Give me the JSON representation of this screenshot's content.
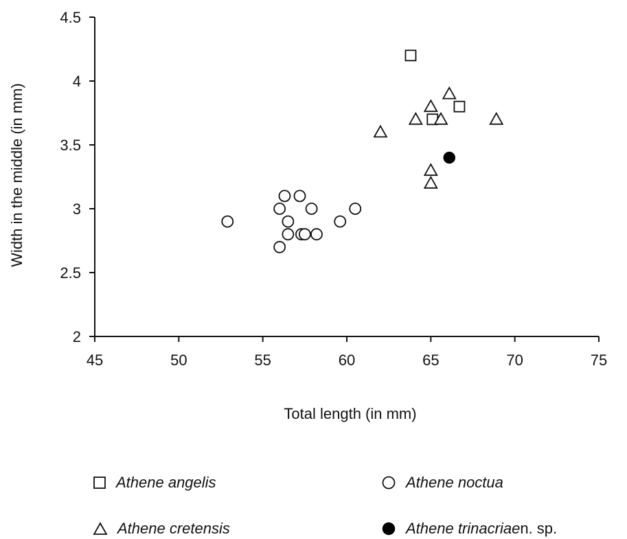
{
  "chart_data": {
    "type": "scatter",
    "title": "",
    "xlabel": "Total length (in mm)",
    "ylabel": "Width in the middle (in mm)",
    "xlim": [
      45,
      75
    ],
    "ylim": [
      2,
      4.5
    ],
    "xticks": [
      "45",
      "50",
      "55",
      "60",
      "65",
      "70",
      "75"
    ],
    "yticks": [
      "2",
      "2.5",
      "3",
      "3.5",
      "4",
      "4.5"
    ],
    "grid": false,
    "legend_position": "bottom",
    "series": [
      {
        "name": "Athene angelis",
        "name_suffix": "",
        "marker": "square",
        "points": [
          [
            63.8,
            4.2
          ],
          [
            65.1,
            3.7
          ],
          [
            66.7,
            3.8
          ]
        ]
      },
      {
        "name": "Athene noctua",
        "name_suffix": "",
        "marker": "circle",
        "points": [
          [
            52.9,
            2.9
          ],
          [
            56.0,
            3.0
          ],
          [
            56.3,
            3.1
          ],
          [
            57.2,
            3.1
          ],
          [
            56.5,
            2.9
          ],
          [
            56.5,
            2.8
          ],
          [
            57.9,
            3.0
          ],
          [
            57.3,
            2.8
          ],
          [
            57.5,
            2.8
          ],
          [
            58.2,
            2.8
          ],
          [
            56.0,
            2.7
          ],
          [
            59.6,
            2.9
          ],
          [
            60.5,
            3.0
          ]
        ]
      },
      {
        "name": "Athene cretensis",
        "name_suffix": "",
        "marker": "triangle",
        "points": [
          [
            62.0,
            3.6
          ],
          [
            64.1,
            3.7
          ],
          [
            65.0,
            3.8
          ],
          [
            65.0,
            3.3
          ],
          [
            65.0,
            3.2
          ],
          [
            65.6,
            3.7
          ],
          [
            66.1,
            3.9
          ],
          [
            68.9,
            3.7
          ]
        ]
      },
      {
        "name": "Athene trinacriae",
        "name_suffix": " n. sp.",
        "marker": "filled-circle",
        "points": [
          [
            66.1,
            3.4
          ]
        ]
      }
    ]
  }
}
